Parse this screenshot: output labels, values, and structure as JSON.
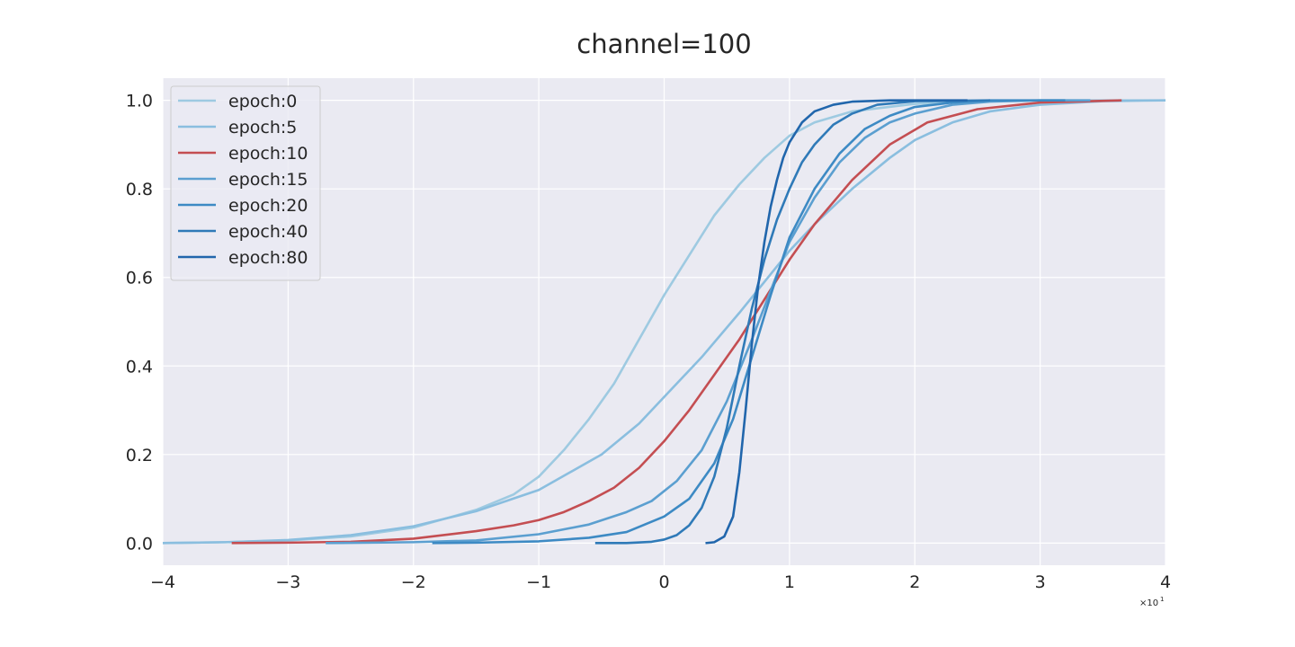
{
  "chart_data": {
    "type": "line",
    "title": "channel=100",
    "xlabel": "",
    "ylabel": "",
    "x_offset_label": "×10",
    "x_offset_exponent": "1",
    "xlim": [
      -4,
      4
    ],
    "ylim": [
      -0.05,
      1.05
    ],
    "xticks": [
      -4,
      -3,
      -2,
      -1,
      0,
      1,
      2,
      3,
      4
    ],
    "xtick_labels": [
      "−4",
      "−3",
      "−2",
      "−1",
      "0",
      "1",
      "2",
      "3",
      "4"
    ],
    "yticks": [
      0.0,
      0.2,
      0.4,
      0.6,
      0.8,
      1.0
    ],
    "ytick_labels": [
      "0.0",
      "0.2",
      "0.4",
      "0.6",
      "0.8",
      "1.0"
    ],
    "grid": true,
    "legend_position": "top-left",
    "background_color": "#eaeaf2",
    "series": [
      {
        "name": "epoch:0",
        "color": "#9ecae1",
        "points": [
          [
            -4.0,
            0.0
          ],
          [
            -3.5,
            0.002
          ],
          [
            -3.0,
            0.006
          ],
          [
            -2.5,
            0.015
          ],
          [
            -2.0,
            0.035
          ],
          [
            -1.5,
            0.075
          ],
          [
            -1.2,
            0.11
          ],
          [
            -1.0,
            0.15
          ],
          [
            -0.8,
            0.21
          ],
          [
            -0.6,
            0.28
          ],
          [
            -0.4,
            0.36
          ],
          [
            -0.2,
            0.46
          ],
          [
            0.0,
            0.56
          ],
          [
            0.2,
            0.65
          ],
          [
            0.4,
            0.74
          ],
          [
            0.6,
            0.81
          ],
          [
            0.8,
            0.87
          ],
          [
            1.0,
            0.92
          ],
          [
            1.2,
            0.95
          ],
          [
            1.5,
            0.975
          ],
          [
            2.0,
            0.992
          ],
          [
            2.5,
            0.998
          ],
          [
            3.0,
            1.0
          ],
          [
            3.5,
            1.0
          ],
          [
            4.0,
            1.0
          ]
        ]
      },
      {
        "name": "epoch:5",
        "color": "#8abedf",
        "points": [
          [
            -4.0,
            0.0
          ],
          [
            -3.5,
            0.002
          ],
          [
            -3.0,
            0.007
          ],
          [
            -2.5,
            0.018
          ],
          [
            -2.0,
            0.038
          ],
          [
            -1.5,
            0.072
          ],
          [
            -1.0,
            0.12
          ],
          [
            -0.5,
            0.2
          ],
          [
            -0.2,
            0.27
          ],
          [
            0.0,
            0.33
          ],
          [
            0.3,
            0.42
          ],
          [
            0.6,
            0.52
          ],
          [
            0.8,
            0.59
          ],
          [
            1.0,
            0.66
          ],
          [
            1.2,
            0.72
          ],
          [
            1.5,
            0.8
          ],
          [
            1.8,
            0.87
          ],
          [
            2.0,
            0.91
          ],
          [
            2.3,
            0.95
          ],
          [
            2.6,
            0.975
          ],
          [
            3.0,
            0.99
          ],
          [
            3.5,
            0.998
          ],
          [
            4.0,
            1.0
          ]
        ]
      },
      {
        "name": "epoch:10",
        "color": "#c44e52",
        "points": [
          [
            -3.45,
            0.0
          ],
          [
            -3.0,
            0.001
          ],
          [
            -2.5,
            0.003
          ],
          [
            -2.0,
            0.01
          ],
          [
            -1.5,
            0.027
          ],
          [
            -1.2,
            0.04
          ],
          [
            -1.0,
            0.052
          ],
          [
            -0.8,
            0.07
          ],
          [
            -0.6,
            0.095
          ],
          [
            -0.4,
            0.125
          ],
          [
            -0.2,
            0.17
          ],
          [
            0.0,
            0.23
          ],
          [
            0.2,
            0.3
          ],
          [
            0.4,
            0.38
          ],
          [
            0.6,
            0.46
          ],
          [
            0.8,
            0.55
          ],
          [
            1.0,
            0.64
          ],
          [
            1.2,
            0.72
          ],
          [
            1.5,
            0.82
          ],
          [
            1.8,
            0.9
          ],
          [
            2.1,
            0.95
          ],
          [
            2.5,
            0.98
          ],
          [
            3.0,
            0.995
          ],
          [
            3.65,
            1.0
          ]
        ]
      },
      {
        "name": "epoch:15",
        "color": "#5b9fd0",
        "points": [
          [
            -2.7,
            0.0
          ],
          [
            -2.0,
            0.002
          ],
          [
            -1.5,
            0.006
          ],
          [
            -1.0,
            0.02
          ],
          [
            -0.6,
            0.042
          ],
          [
            -0.3,
            0.07
          ],
          [
            -0.1,
            0.095
          ],
          [
            0.1,
            0.14
          ],
          [
            0.3,
            0.21
          ],
          [
            0.5,
            0.32
          ],
          [
            0.7,
            0.46
          ],
          [
            0.85,
            0.57
          ],
          [
            1.0,
            0.68
          ],
          [
            1.2,
            0.78
          ],
          [
            1.4,
            0.86
          ],
          [
            1.6,
            0.915
          ],
          [
            1.8,
            0.95
          ],
          [
            2.0,
            0.97
          ],
          [
            2.3,
            0.99
          ],
          [
            2.6,
            0.997
          ],
          [
            3.0,
            1.0
          ],
          [
            3.4,
            1.0
          ]
        ]
      },
      {
        "name": "epoch:20",
        "color": "#3d8ac4",
        "points": [
          [
            -1.85,
            0.0
          ],
          [
            -1.5,
            0.001
          ],
          [
            -1.0,
            0.004
          ],
          [
            -0.6,
            0.012
          ],
          [
            -0.3,
            0.025
          ],
          [
            0.0,
            0.06
          ],
          [
            0.2,
            0.1
          ],
          [
            0.4,
            0.18
          ],
          [
            0.55,
            0.28
          ],
          [
            0.7,
            0.42
          ],
          [
            0.85,
            0.56
          ],
          [
            1.0,
            0.69
          ],
          [
            1.2,
            0.8
          ],
          [
            1.4,
            0.88
          ],
          [
            1.6,
            0.935
          ],
          [
            1.8,
            0.965
          ],
          [
            2.0,
            0.985
          ],
          [
            2.3,
            0.995
          ],
          [
            2.6,
            1.0
          ],
          [
            3.2,
            1.0
          ]
        ]
      },
      {
        "name": "epoch:40",
        "color": "#2f7ab8",
        "points": [
          [
            -0.55,
            0.0
          ],
          [
            -0.3,
            0.0
          ],
          [
            -0.1,
            0.003
          ],
          [
            0.0,
            0.008
          ],
          [
            0.1,
            0.018
          ],
          [
            0.2,
            0.04
          ],
          [
            0.3,
            0.08
          ],
          [
            0.4,
            0.15
          ],
          [
            0.5,
            0.26
          ],
          [
            0.6,
            0.4
          ],
          [
            0.7,
            0.53
          ],
          [
            0.8,
            0.64
          ],
          [
            0.9,
            0.73
          ],
          [
            1.0,
            0.8
          ],
          [
            1.1,
            0.86
          ],
          [
            1.2,
            0.9
          ],
          [
            1.35,
            0.945
          ],
          [
            1.5,
            0.97
          ],
          [
            1.7,
            0.99
          ],
          [
            2.0,
            0.998
          ],
          [
            2.6,
            1.0
          ]
        ]
      },
      {
        "name": "epoch:80",
        "color": "#2166ac",
        "points": [
          [
            0.33,
            0.0
          ],
          [
            0.4,
            0.002
          ],
          [
            0.48,
            0.015
          ],
          [
            0.55,
            0.06
          ],
          [
            0.6,
            0.16
          ],
          [
            0.65,
            0.3
          ],
          [
            0.7,
            0.45
          ],
          [
            0.75,
            0.58
          ],
          [
            0.8,
            0.68
          ],
          [
            0.85,
            0.76
          ],
          [
            0.9,
            0.82
          ],
          [
            0.95,
            0.87
          ],
          [
            1.0,
            0.905
          ],
          [
            1.1,
            0.95
          ],
          [
            1.2,
            0.975
          ],
          [
            1.35,
            0.99
          ],
          [
            1.5,
            0.997
          ],
          [
            1.8,
            1.0
          ],
          [
            2.42,
            1.0
          ]
        ]
      }
    ]
  }
}
